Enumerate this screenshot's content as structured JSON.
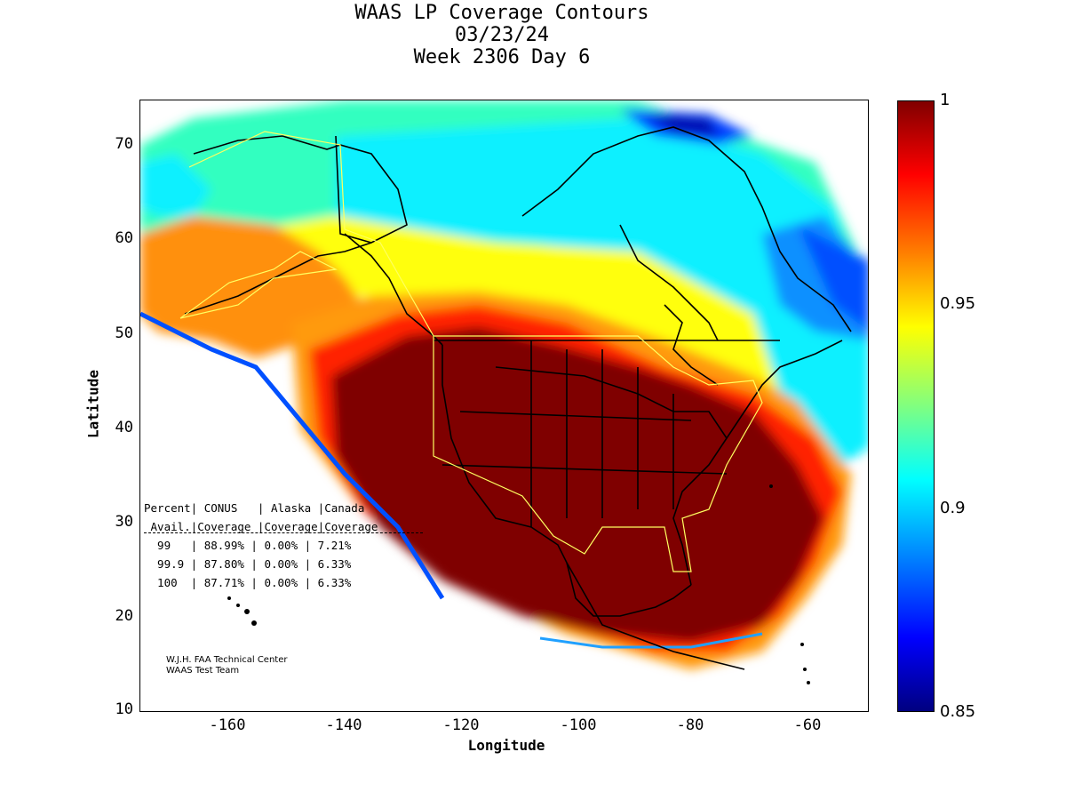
{
  "title": {
    "line1": "WAAS LP Coverage Contours",
    "line2": "03/23/24",
    "line3": "Week 2306 Day 6"
  },
  "axes": {
    "xlabel": "Longitude",
    "ylabel": "Latitude",
    "xticks": [
      "-160",
      "-140",
      "-120",
      "-100",
      "-80",
      "-60"
    ],
    "yticks": [
      "70",
      "60",
      "50",
      "40",
      "30",
      "20",
      "10"
    ]
  },
  "colorbar": {
    "ticks": [
      "1",
      "0.95",
      "0.9",
      "0.85"
    ],
    "range": [
      0.85,
      1.0
    ],
    "colormap": "jet"
  },
  "stats": {
    "header1": "Percent| CONUS   | Alaska |Canada",
    "header2": " Avail.|Coverage |Coverage|Coverage",
    "rows": [
      "  99   | 88.99% | 0.00% | 7.21%",
      "  99.9 | 87.80% | 0.00% | 6.33%",
      "  100  | 87.71% | 0.00% | 6.33%"
    ]
  },
  "credit": {
    "line1": "W.J.H. FAA Technical Center",
    "line2": "WAAS Test Team"
  },
  "chart_data": {
    "type": "heatmap",
    "title": "WAAS LP Coverage Contours",
    "subtitle": "03/23/24 Week 2306 Day 6",
    "xlabel": "Longitude",
    "ylabel": "Latitude",
    "xlim": [
      -175,
      -50
    ],
    "ylim": [
      10,
      75
    ],
    "colorbar_range": [
      0.85,
      1.0
    ],
    "colors": {
      "dark_red": "#800000",
      "red": "#e00000",
      "orange": "#ff8000",
      "yellow": "#ffff00",
      "cyan": "#00ffff",
      "blue": "#0040ff",
      "dark_blue": "#000080"
    },
    "coverage_table": {
      "columns": [
        "Percent Avail.",
        "CONUS Coverage",
        "Alaska Coverage",
        "Canada Coverage"
      ],
      "rows": [
        [
          "99",
          "88.99%",
          "0.00%",
          "7.21%"
        ],
        [
          "99.9",
          "87.80%",
          "0.00%",
          "6.33%"
        ],
        [
          "100",
          "87.71%",
          "0.00%",
          "6.33%"
        ]
      ]
    }
  }
}
